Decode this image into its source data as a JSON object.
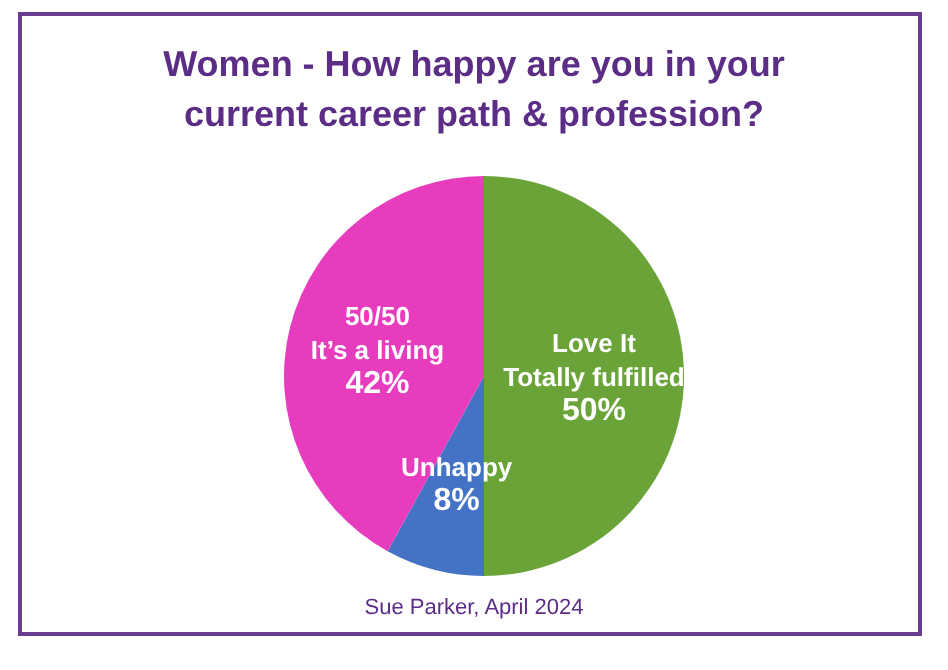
{
  "chart_data": {
    "type": "pie",
    "title": "Women - How happy are you in your\ncurrent career path & profession?",
    "categories": [
      "Love It\nTotally fulfilled",
      "Unhappy",
      "50/50\nIt’s a living"
    ],
    "values": [
      50,
      8,
      42
    ],
    "colors": [
      "#6aa338",
      "#4472c4",
      "#e83cbf"
    ],
    "value_labels": [
      "50%",
      "8%",
      "42%"
    ],
    "annotations": [
      "Sue Parker, April 2024"
    ]
  }
}
